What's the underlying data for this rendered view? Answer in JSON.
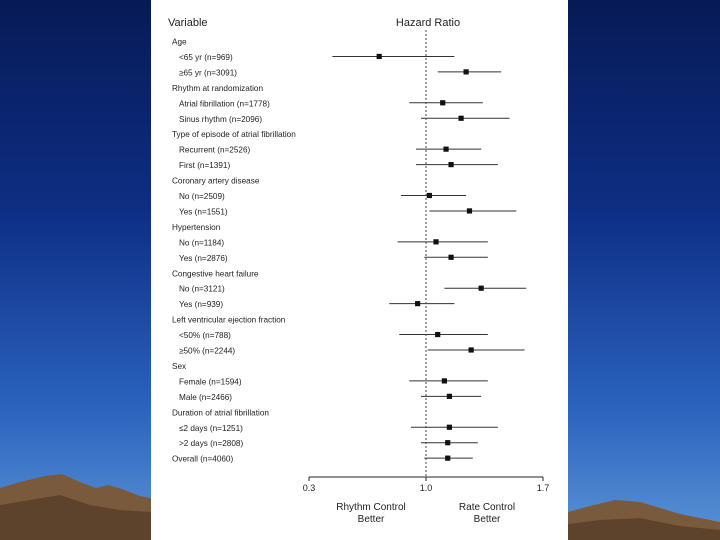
{
  "chart_data": {
    "type": "forest",
    "variable_header": "Variable",
    "hazard_header": "Hazard Ratio",
    "x_ticks": [
      "0.3",
      "1.0",
      "1.7"
    ],
    "xlim": [
      0.3,
      1.7
    ],
    "reference_line": 1.0,
    "direction_left": [
      "Rhythm Control",
      "Better"
    ],
    "direction_right": [
      "Rate Control",
      "Better"
    ],
    "rows": [
      {
        "label": "Age",
        "kind": "header"
      },
      {
        "label": "<65 yr (n=969)",
        "kind": "item",
        "hr": 0.72,
        "lo": 0.44,
        "hi": 1.17
      },
      {
        "label": "≥65 yr (n=3091)",
        "kind": "item",
        "hr": 1.24,
        "lo": 1.07,
        "hi": 1.45
      },
      {
        "label": "Rhythm at randomization",
        "kind": "header"
      },
      {
        "label": "Atrial fibrillation (n=1778)",
        "kind": "item",
        "hr": 1.1,
        "lo": 0.9,
        "hi": 1.34
      },
      {
        "label": "Sinus rhythm (n=2096)",
        "kind": "item",
        "hr": 1.21,
        "lo": 0.97,
        "hi": 1.5
      },
      {
        "label": "Type of episode of atrial fibrillation",
        "kind": "header"
      },
      {
        "label": "Recurrent (n=2526)",
        "kind": "item",
        "hr": 1.12,
        "lo": 0.94,
        "hi": 1.33
      },
      {
        "label": "First (n=1391)",
        "kind": "item",
        "hr": 1.15,
        "lo": 0.94,
        "hi": 1.43
      },
      {
        "label": "Coronary artery disease",
        "kind": "header"
      },
      {
        "label": "No (n=2509)",
        "kind": "item",
        "hr": 1.02,
        "lo": 0.85,
        "hi": 1.24
      },
      {
        "label": "Yes (n=1551)",
        "kind": "item",
        "hr": 1.26,
        "lo": 1.02,
        "hi": 1.54
      },
      {
        "label": "Hypertension",
        "kind": "header"
      },
      {
        "label": "No (n=1184)",
        "kind": "item",
        "hr": 1.06,
        "lo": 0.83,
        "hi": 1.37
      },
      {
        "label": "Yes (n=2876)",
        "kind": "item",
        "hr": 1.15,
        "lo": 0.99,
        "hi": 1.37
      },
      {
        "label": "Congestive heart failure",
        "kind": "header"
      },
      {
        "label": "No (n=3121)",
        "kind": "item",
        "hr": 1.33,
        "lo": 1.11,
        "hi": 1.6
      },
      {
        "label": "Yes (n=939)",
        "kind": "item",
        "hr": 0.95,
        "lo": 0.78,
        "hi": 1.17
      },
      {
        "label": "Left ventricular ejection fraction",
        "kind": "header"
      },
      {
        "label": "<50% (n=788)",
        "kind": "item",
        "hr": 1.07,
        "lo": 0.84,
        "hi": 1.37
      },
      {
        "label": "≥50% (n=2244)",
        "kind": "item",
        "hr": 1.27,
        "lo": 1.01,
        "hi": 1.59
      },
      {
        "label": "Sex",
        "kind": "header"
      },
      {
        "label": "Female (n=1594)",
        "kind": "item",
        "hr": 1.11,
        "lo": 0.9,
        "hi": 1.37
      },
      {
        "label": "Male (n=2466)",
        "kind": "item",
        "hr": 1.14,
        "lo": 0.97,
        "hi": 1.33
      },
      {
        "label": "Duration of atrial fibrillation",
        "kind": "header"
      },
      {
        "label": "≤2 days (n=1251)",
        "kind": "item",
        "hr": 1.14,
        "lo": 0.91,
        "hi": 1.43
      },
      {
        "label": ">2 days (n=2808)",
        "kind": "item",
        "hr": 1.13,
        "lo": 0.97,
        "hi": 1.31
      },
      {
        "label": "Overall (n=4060)",
        "kind": "overall",
        "hr": 1.13,
        "lo": 0.99,
        "hi": 1.28
      }
    ]
  }
}
